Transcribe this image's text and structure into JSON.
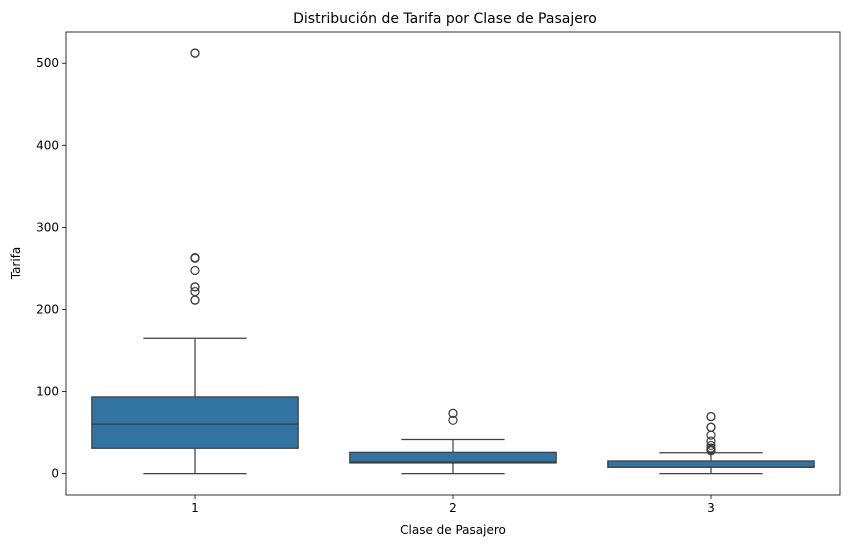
{
  "chart_data": {
    "type": "box",
    "title": "Distribución de Tarifa por Clase de Pasajero",
    "xlabel": "Clase de Pasajero",
    "ylabel": "Tarifa",
    "categories": [
      "1",
      "2",
      "3"
    ],
    "ylim": [
      -26,
      538
    ],
    "yticks": [
      0,
      100,
      200,
      300,
      400,
      500
    ],
    "grid": false,
    "box_color": "#3274a1",
    "line_color": "#3d3d3d",
    "boxes": [
      {
        "category": "1",
        "whisker_low": 0,
        "q1": 30.9,
        "median": 60.3,
        "q3": 93.5,
        "whisker_high": 164.9,
        "outliers": [
          211.3,
          211.5,
          221.8,
          227.5,
          227.5,
          247.5,
          262.4,
          263.0,
          263.0,
          512.3,
          512.3
        ]
      },
      {
        "category": "2",
        "whisker_low": 0,
        "q1": 13.0,
        "median": 14.25,
        "q3": 26.0,
        "whisker_high": 41.6,
        "outliers": [
          65.0,
          73.5,
          73.5
        ]
      },
      {
        "category": "3",
        "whisker_low": 0,
        "q1": 7.75,
        "median": 8.05,
        "q3": 15.5,
        "whisker_high": 25.5,
        "outliers": [
          27.9,
          29.1,
          31.3,
          34.4,
          39.7,
          46.9,
          56.5,
          56.5,
          69.55,
          69.55
        ]
      }
    ]
  }
}
